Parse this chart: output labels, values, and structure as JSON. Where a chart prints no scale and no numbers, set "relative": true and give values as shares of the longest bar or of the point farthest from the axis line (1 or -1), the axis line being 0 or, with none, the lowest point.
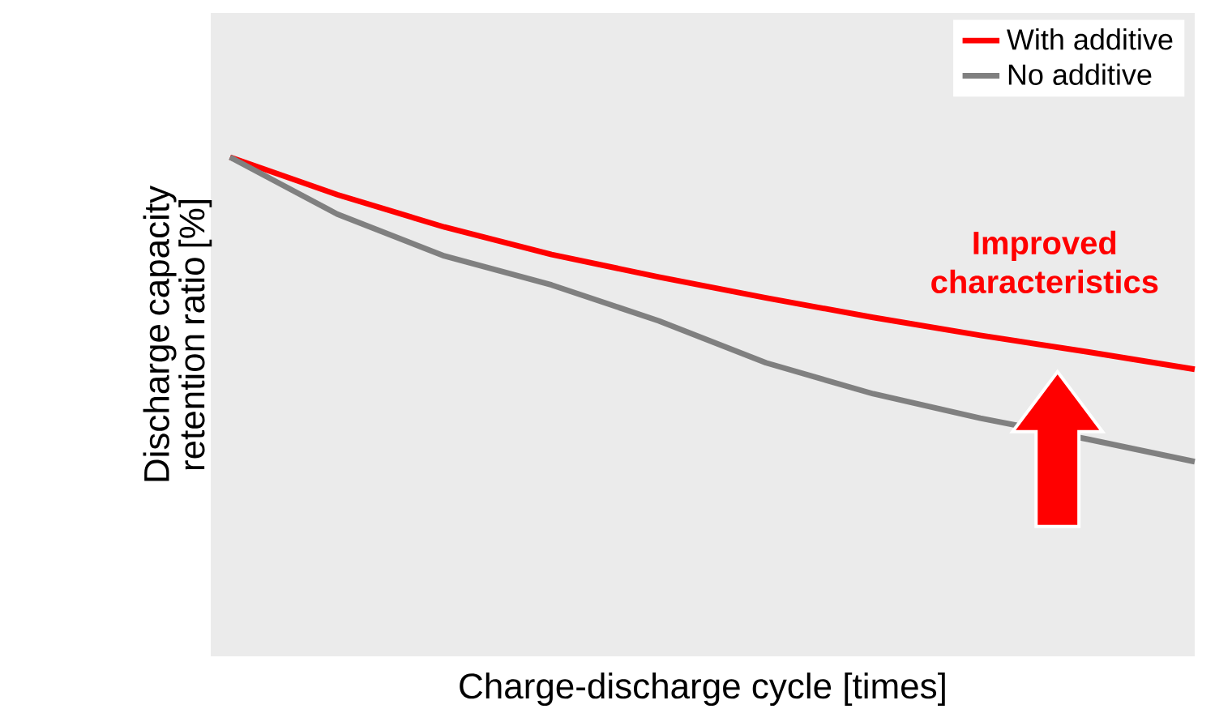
{
  "chart_data": {
    "type": "line",
    "relative": true,
    "xlabel": "Charge-discharge cycle [times]",
    "ylabel": "Discharge capacity retention ratio [%]",
    "categories": [
      null,
      null,
      null,
      null,
      null,
      null,
      null,
      null,
      null,
      null
    ],
    "series": [
      {
        "name": "With additive",
        "color": "#ff0000",
        "values": [
          1,
          0.925,
          0.86,
          0.805,
          0.76,
          0.718,
          0.679,
          0.643,
          0.61,
          0.575
        ]
      },
      {
        "name": "No additive",
        "color": "#808080",
        "values": [
          1,
          0.886,
          0.802,
          0.744,
          0.672,
          0.588,
          0.526,
          0.477,
          0.435,
          0.39
        ]
      }
    ],
    "legend": "top right",
    "marker": "none",
    "line_style": "solid",
    "annotations": [
      "Improved characteristics"
    ]
  }
}
